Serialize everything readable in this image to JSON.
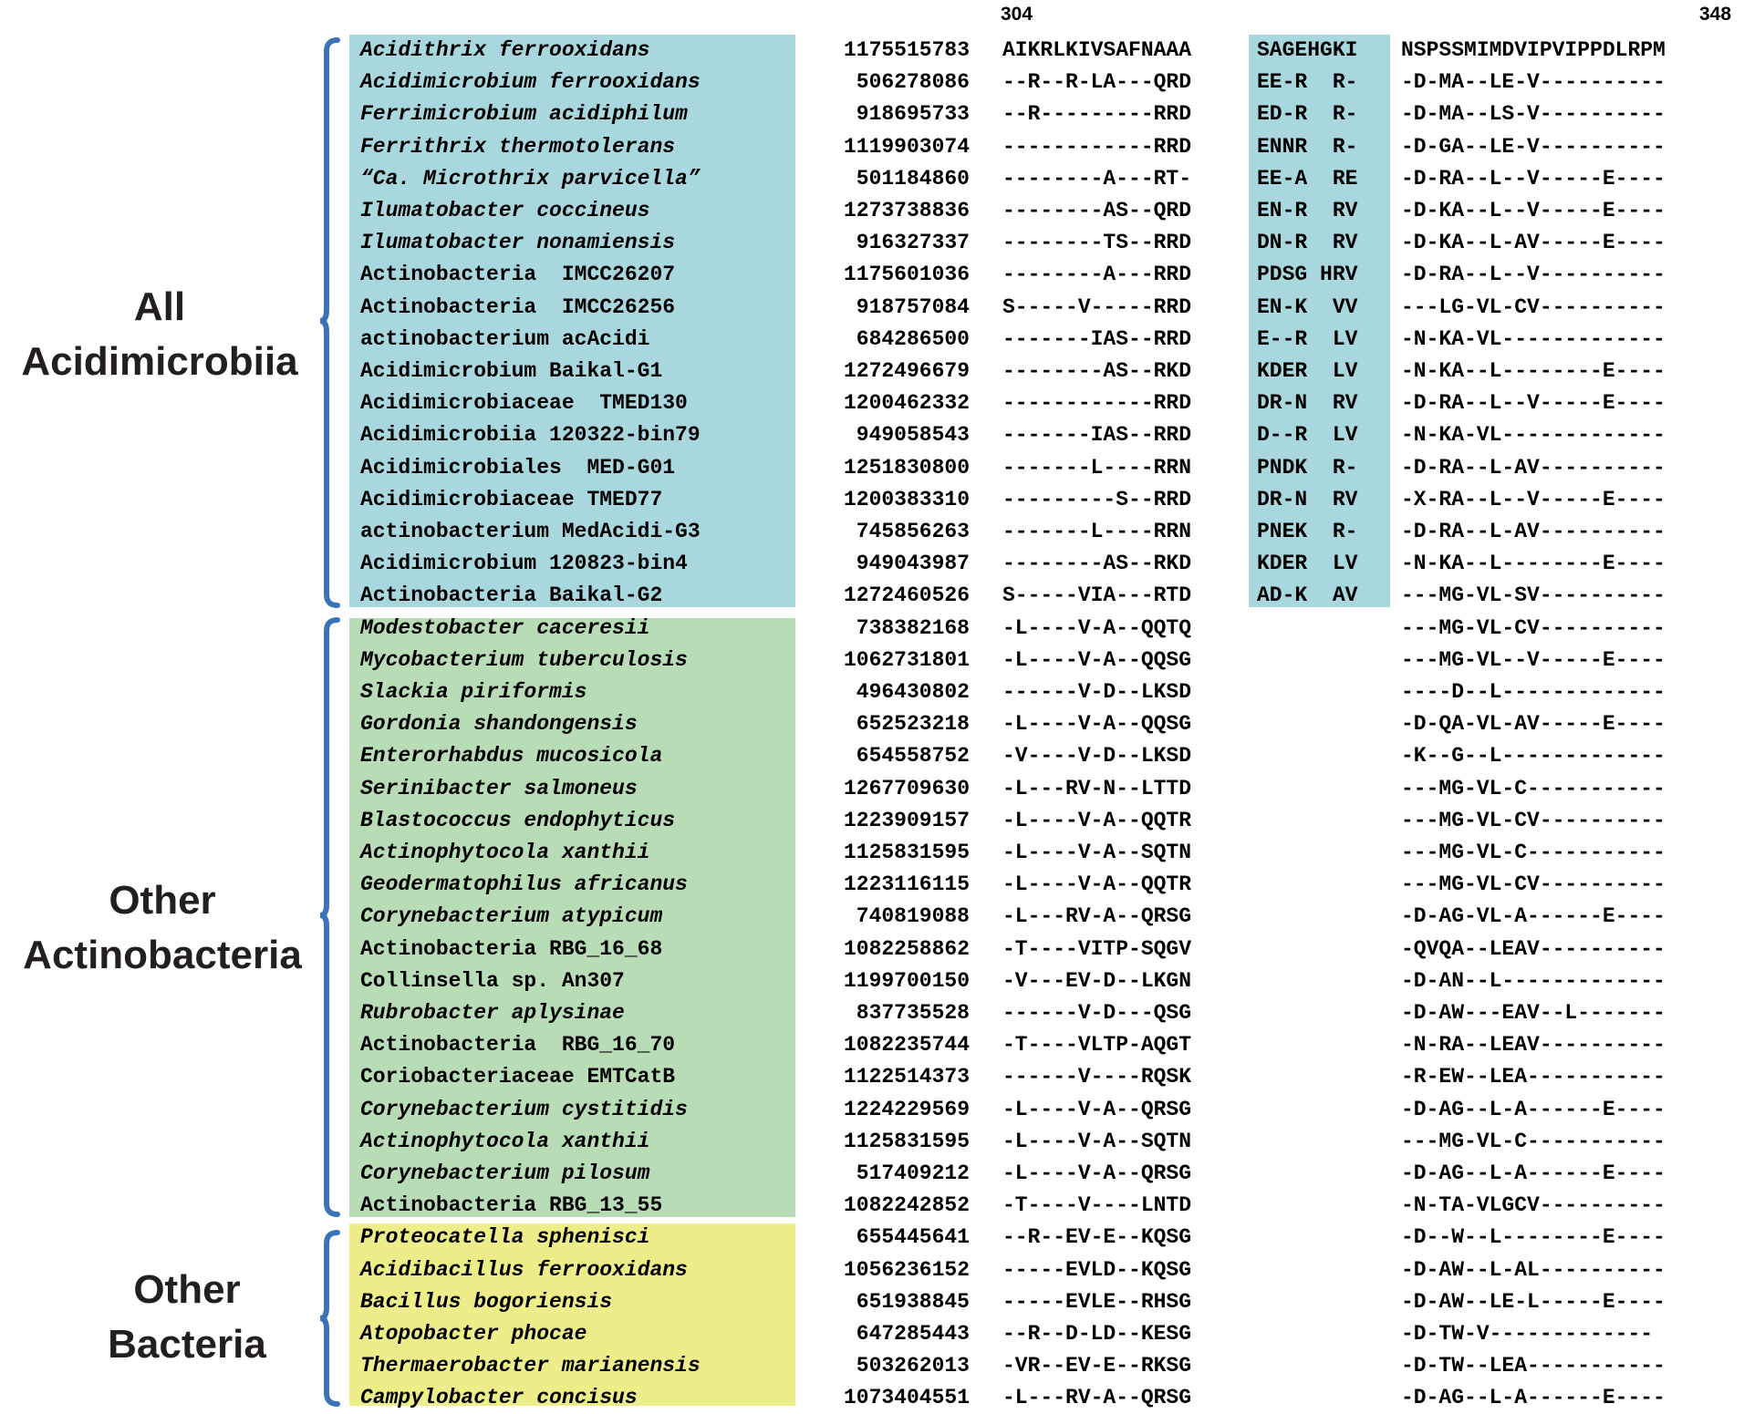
{
  "colors": {
    "acidimicrobiia_bg": "#a8d8de",
    "actinobacteria_bg": "#b7dcb6",
    "other_bacteria_bg": "#eded8a",
    "bracket": "#3b73b9"
  },
  "positions": {
    "start": "304",
    "end": "348"
  },
  "groups": [
    {
      "label_line1": "All",
      "label_line2": "Acidimicrobiia"
    },
    {
      "label_line1": "Other",
      "label_line2": "Actinobacteria"
    },
    {
      "label_line1": "Other",
      "label_line2": "Bacteria"
    }
  ],
  "rows": [
    {
      "species": "Acidithrix ferrooxidans",
      "italic": true,
      "accession": "1175515783",
      "seq1": "AIKRLKIVSAFNAAA",
      "seq2": "SAGEHGKI",
      "seq3": "NSPSSMIMDVIPVIPPDLRPM",
      "group": 0
    },
    {
      "species": "Acidimicrobium ferrooxidans",
      "italic": true,
      "accession": "506278086",
      "seq1": "--R--R-LA---QRD",
      "seq2": "EE-R  R-",
      "seq3": "-D-MA--LE-V----------",
      "group": 0
    },
    {
      "species": "Ferrimicrobium acidiphilum",
      "italic": true,
      "accession": "918695733",
      "seq1": "--R---------RRD",
      "seq2": "ED-R  R-",
      "seq3": "-D-MA--LS-V----------",
      "group": 0
    },
    {
      "species": "Ferrithrix thermotolerans",
      "italic": true,
      "accession": "1119903074",
      "seq1": "------------RRD",
      "seq2": "ENNR  R-",
      "seq3": "-D-GA--LE-V----------",
      "group": 0
    },
    {
      "species": "“Ca. Microthrix parvicella”",
      "italic": true,
      "accession": "501184860",
      "seq1": "--------A---RT-",
      "seq2": "EE-A  RE",
      "seq3": "-D-RA--L--V-----E----",
      "group": 0
    },
    {
      "species": "Ilumatobacter coccineus",
      "italic": true,
      "accession": "1273738836",
      "seq1": "--------AS--QRD",
      "seq2": "EN-R  RV",
      "seq3": "-D-KA--L--V-----E----",
      "group": 0
    },
    {
      "species": "Ilumatobacter nonamiensis",
      "italic": true,
      "accession": "916327337",
      "seq1": "--------TS--RRD",
      "seq2": "DN-R  RV",
      "seq3": "-D-KA--L-AV-----E----",
      "group": 0
    },
    {
      "species": "Actinobacteria  IMCC26207",
      "italic": false,
      "accession": "1175601036",
      "seq1": "--------A---RRD",
      "seq2": "PDSG HRV",
      "seq3": "-D-RA--L--V----------",
      "group": 0
    },
    {
      "species": "Actinobacteria  IMCC26256",
      "italic": false,
      "accession": "918757084",
      "seq1": "S-----V-----RRD",
      "seq2": "EN-K  VV",
      "seq3": "---LG-VL-CV----------",
      "group": 0
    },
    {
      "species": "actinobacterium acAcidi",
      "italic": false,
      "accession": "684286500",
      "seq1": "-------IAS--RRD",
      "seq2": "E--R  LV",
      "seq3": "-N-KA-VL-------------",
      "group": 0
    },
    {
      "species": "Acidimicrobium Baikal-G1",
      "italic": false,
      "accession": "1272496679",
      "seq1": "--------AS--RKD",
      "seq2": "KDER  LV",
      "seq3": "-N-KA--L--------E----",
      "group": 0
    },
    {
      "species": "Acidimicrobiaceae  TMED130",
      "italic": false,
      "accession": "1200462332",
      "seq1": "------------RRD",
      "seq2": "DR-N  RV",
      "seq3": "-D-RA--L--V-----E----",
      "group": 0
    },
    {
      "species": "Acidimicrobiia 120322-bin79",
      "italic": false,
      "accession": "949058543",
      "seq1": "-------IAS--RRD",
      "seq2": "D--R  LV",
      "seq3": "-N-KA-VL-------------",
      "group": 0
    },
    {
      "species": "Acidimicrobiales  MED-G01",
      "italic": false,
      "accession": "1251830800",
      "seq1": "-------L----RRN",
      "seq2": "PNDK  R-",
      "seq3": "-D-RA--L-AV----------",
      "group": 0
    },
    {
      "species": "Acidimicrobiaceae TMED77",
      "italic": false,
      "accession": "1200383310",
      "seq1": "---------S--RRD",
      "seq2": "DR-N  RV",
      "seq3": "-X-RA--L--V-----E----",
      "group": 0
    },
    {
      "species": "actinobacterium MedAcidi-G3",
      "italic": false,
      "accession": "745856263",
      "seq1": "-------L----RRN",
      "seq2": "PNEK  R-",
      "seq3": "-D-RA--L-AV----------",
      "group": 0
    },
    {
      "species": "Acidimicrobium 120823-bin4",
      "italic": false,
      "accession": "949043987",
      "seq1": "--------AS--RKD",
      "seq2": "KDER  LV",
      "seq3": "-N-KA--L--------E----",
      "group": 0
    },
    {
      "species": "Actinobacteria Baikal-G2",
      "italic": false,
      "accession": "1272460526",
      "seq1": "S-----VIA---RTD",
      "seq2": "AD-K  AV",
      "seq3": "---MG-VL-SV----------",
      "group": 0
    },
    {
      "species": "Modestobacter caceresii",
      "italic": true,
      "accession": "738382168",
      "seq1": "-L----V-A--QQTQ",
      "seq2": "",
      "seq3": "---MG-VL-CV----------",
      "group": 1
    },
    {
      "species": "Mycobacterium tuberculosis",
      "italic": true,
      "accession": "1062731801",
      "seq1": "-L----V-A--QQSG",
      "seq2": "",
      "seq3": "---MG-VL--V-----E----",
      "group": 1
    },
    {
      "species": "Slackia piriformis",
      "italic": true,
      "accession": "496430802",
      "seq1": "------V-D--LKSD",
      "seq2": "",
      "seq3": "----D--L-------------",
      "group": 1
    },
    {
      "species": "Gordonia shandongensis",
      "italic": true,
      "accession": "652523218",
      "seq1": "-L----V-A--QQSG",
      "seq2": "",
      "seq3": "-D-QA-VL-AV-----E----",
      "group": 1
    },
    {
      "species": "Enterorhabdus mucosicola",
      "italic": true,
      "accession": "654558752",
      "seq1": "-V----V-D--LKSD",
      "seq2": "",
      "seq3": "-K--G--L-------------",
      "group": 1
    },
    {
      "species": "Serinibacter salmoneus",
      "italic": true,
      "accession": "1267709630",
      "seq1": "-L---RV-N--LTTD",
      "seq2": "",
      "seq3": "---MG-VL-C-----------",
      "group": 1
    },
    {
      "species": "Blastococcus endophyticus",
      "italic": true,
      "accession": "1223909157",
      "seq1": "-L----V-A--QQTR",
      "seq2": "",
      "seq3": "---MG-VL-CV----------",
      "group": 1
    },
    {
      "species": "Actinophytocola xanthii",
      "italic": true,
      "accession": "1125831595",
      "seq1": "-L----V-A--SQTN",
      "seq2": "",
      "seq3": "---MG-VL-C-----------",
      "group": 1
    },
    {
      "species": "Geodermatophilus africanus",
      "italic": true,
      "accession": "1223116115",
      "seq1": "-L----V-A--QQTR",
      "seq2": "",
      "seq3": "---MG-VL-CV----------",
      "group": 1
    },
    {
      "species": "Corynebacterium atypicum",
      "italic": true,
      "accession": "740819088",
      "seq1": "-L---RV-A--QRSG",
      "seq2": "",
      "seq3": "-D-AG-VL-A------E----",
      "group": 1
    },
    {
      "species": "Actinobacteria RBG_16_68",
      "italic": false,
      "accession": "1082258862",
      "seq1": "-T----VITP-SQGV",
      "seq2": "",
      "seq3": "-QVQA--LEAV----------",
      "group": 1
    },
    {
      "species": "Collinsella sp. An307",
      "italic": false,
      "accession": "1199700150",
      "seq1": "-V---EV-D--LKGN",
      "seq2": "",
      "seq3": "-D-AN--L-------------",
      "group": 1
    },
    {
      "species": "Rubrobacter aplysinae",
      "italic": true,
      "accession": "837735528",
      "seq1": "------V-D---QSG",
      "seq2": "",
      "seq3": "-D-AW---EAV--L-------",
      "group": 1
    },
    {
      "species": "Actinobacteria  RBG_16_70",
      "italic": false,
      "accession": "1082235744",
      "seq1": "-T----VLTP-AQGT",
      "seq2": "",
      "seq3": "-N-RA--LEAV----------",
      "group": 1
    },
    {
      "species": "Coriobacteriaceae EMTCatB",
      "italic": false,
      "accession": "1122514373",
      "seq1": "------V----RQSK",
      "seq2": "",
      "seq3": "-R-EW--LEA-----------",
      "group": 1
    },
    {
      "species": "Corynebacterium cystitidis",
      "italic": true,
      "accession": "1224229569",
      "seq1": "-L----V-A--QRSG",
      "seq2": "",
      "seq3": "-D-AG--L-A------E----",
      "group": 1
    },
    {
      "species": "Actinophytocola xanthii",
      "italic": true,
      "accession": "1125831595",
      "seq1": "-L----V-A--SQTN",
      "seq2": "",
      "seq3": "---MG-VL-C-----------",
      "group": 1
    },
    {
      "species": "Corynebacterium pilosum",
      "italic": true,
      "accession": "517409212",
      "seq1": "-L----V-A--QRSG",
      "seq2": "",
      "seq3": "-D-AG--L-A------E----",
      "group": 1
    },
    {
      "species": "Actinobacteria RBG_13_55",
      "italic": false,
      "accession": "1082242852",
      "seq1": "-T----V----LNTD",
      "seq2": "",
      "seq3": "-N-TA-VLGCV----------",
      "group": 1
    },
    {
      "species": "Proteocatella sphenisci",
      "italic": true,
      "accession": "655445641",
      "seq1": "--R--EV-E--KQSG",
      "seq2": "",
      "seq3": "-D--W--L--------E----",
      "group": 2
    },
    {
      "species": "Acidibacillus ferrooxidans",
      "italic": true,
      "accession": "1056236152",
      "seq1": "-----EVLD--KQSG",
      "seq2": "",
      "seq3": "-D-AW--L-AL----------",
      "group": 2
    },
    {
      "species": "Bacillus bogoriensis",
      "italic": true,
      "accession": "651938845",
      "seq1": "-----EVLE--RHSG",
      "seq2": "",
      "seq3": "-D-AW--LE-L-----E----",
      "group": 2
    },
    {
      "species": "Atopobacter phocae",
      "italic": true,
      "accession": "647285443",
      "seq1": "--R--D-LD--KESG",
      "seq2": "",
      "seq3": "-D-TW-V-------------",
      "group": 2
    },
    {
      "species": "Thermaerobacter marianensis",
      "italic": true,
      "accession": "503262013",
      "seq1": "-VR--EV-E--RKSG",
      "seq2": "",
      "seq3": "-D-TW--LEA-----------",
      "group": 2
    },
    {
      "species": "Campylobacter concisus",
      "italic": true,
      "accession": "1073404551",
      "seq1": "-L---RV-A--QRSG",
      "seq2": "",
      "seq3": "-D-AG--L-A------E----",
      "group": 2
    }
  ]
}
